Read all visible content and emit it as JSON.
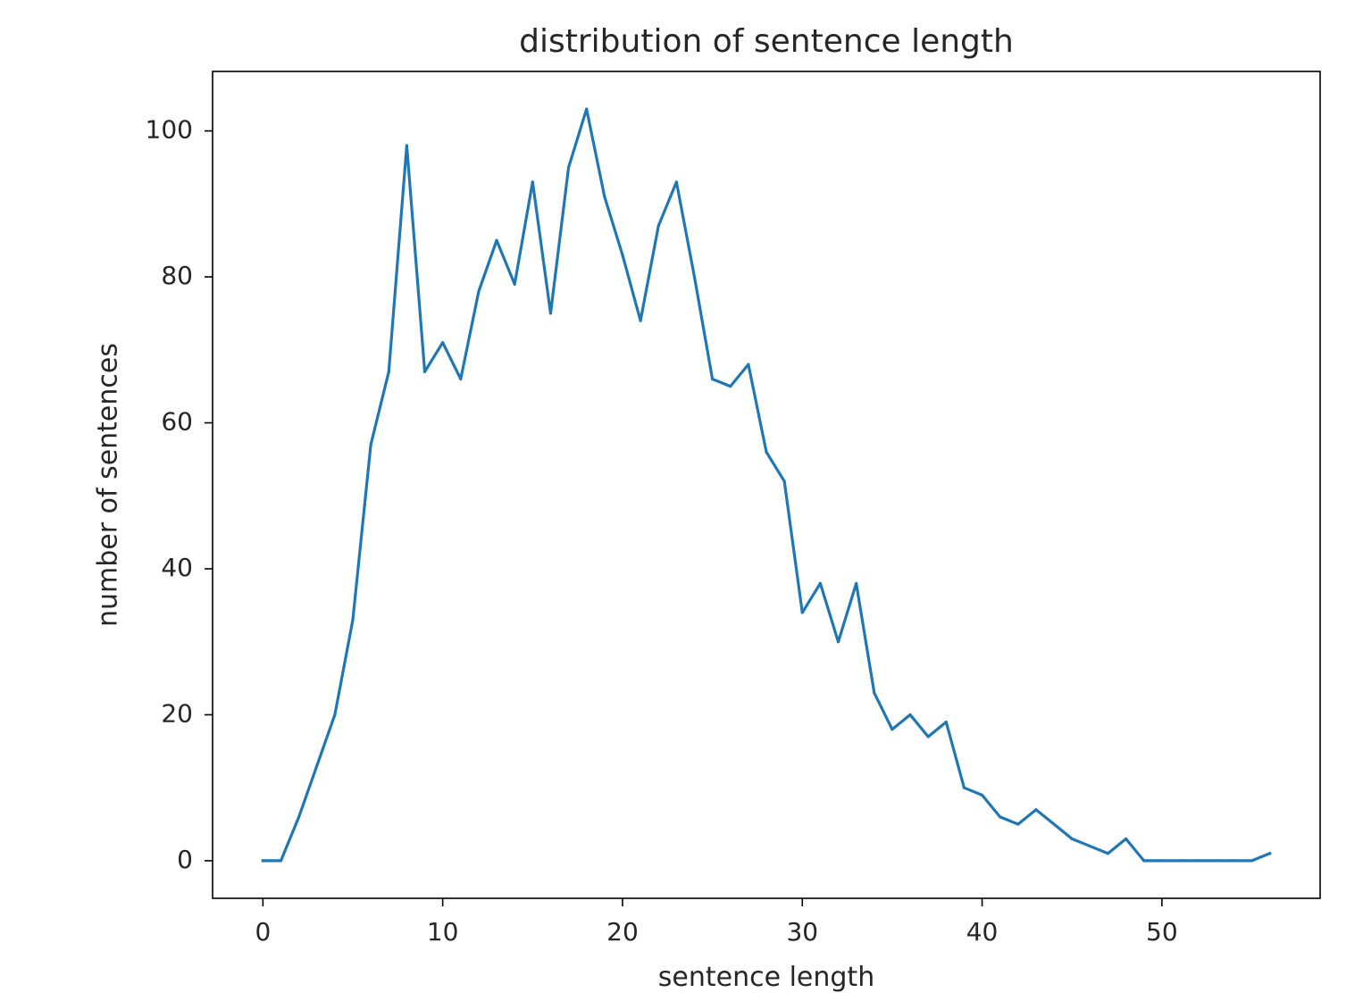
{
  "chart_data": {
    "type": "line",
    "title": "distribution of sentence length",
    "xlabel": "sentence length",
    "ylabel": "number of sentences",
    "xlim": [
      -2.8,
      58.8
    ],
    "ylim": [
      -5.15,
      108.15
    ],
    "xticks": [
      0,
      10,
      20,
      30,
      40,
      50
    ],
    "yticks": [
      0,
      20,
      40,
      60,
      80,
      100
    ],
    "grid": false,
    "series": [
      {
        "color": "#1f77b4",
        "x": [
          0,
          1,
          2,
          3,
          4,
          5,
          6,
          7,
          8,
          9,
          10,
          11,
          12,
          13,
          14,
          15,
          16,
          17,
          18,
          19,
          20,
          21,
          22,
          23,
          24,
          25,
          26,
          27,
          28,
          29,
          30,
          31,
          32,
          33,
          34,
          35,
          36,
          37,
          38,
          39,
          40,
          41,
          42,
          43,
          44,
          45,
          46,
          47,
          48,
          49,
          50,
          51,
          52,
          53,
          54,
          55,
          56
        ],
        "values": [
          0,
          0,
          6,
          13,
          20,
          33,
          57,
          67,
          98,
          67,
          71,
          66,
          78,
          85,
          79,
          93,
          75,
          95,
          103,
          91,
          83,
          74,
          87,
          93,
          80,
          66,
          65,
          68,
          56,
          52,
          34,
          38,
          30,
          38,
          23,
          18,
          20,
          17,
          19,
          10,
          9,
          6,
          5,
          7,
          5,
          3,
          2,
          1,
          3,
          0,
          0,
          0,
          0,
          0,
          0,
          0,
          1
        ]
      }
    ]
  }
}
